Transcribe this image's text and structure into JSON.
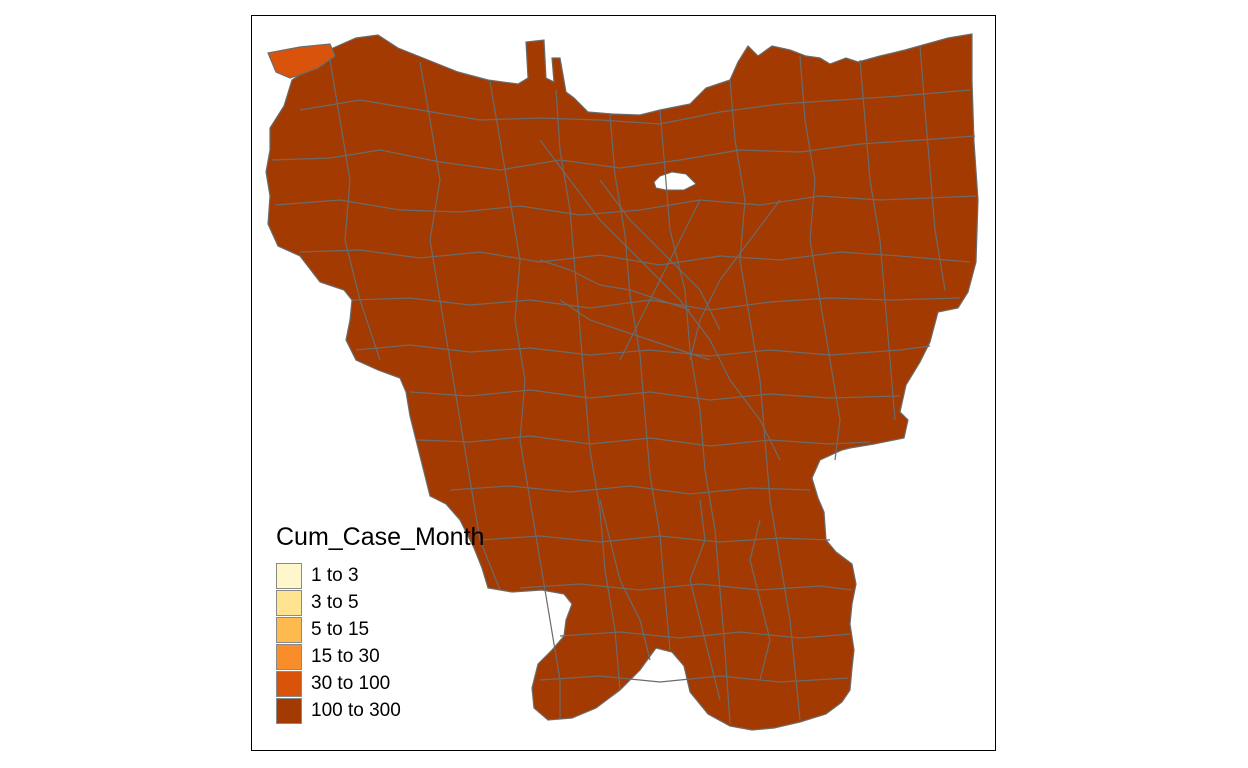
{
  "map": {
    "fill_main": "#A33A02",
    "fill_highlight": "#D9540A",
    "border_color": "#6b6b6b"
  },
  "legend": {
    "title": "Cum_Case_Month",
    "items": [
      {
        "label": "1 to 3",
        "color": "#FFF7CC"
      },
      {
        "label": "3 to 5",
        "color": "#FEE391"
      },
      {
        "label": "5 to 15",
        "color": "#FEBA4F"
      },
      {
        "label": "15 to 30",
        "color": "#F98D2A"
      },
      {
        "label": "30 to 100",
        "color": "#D9540A"
      },
      {
        "label": "100 to 300",
        "color": "#A33A02"
      }
    ]
  }
}
